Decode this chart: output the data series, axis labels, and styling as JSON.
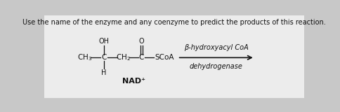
{
  "background_color": "#c8c8c8",
  "content_color": "#f0f0f0",
  "title_text": "Use the name of the enzyme and any coenzyme to predict the products of this reaction.",
  "title_fontsize": 7.0,
  "title_color": "#111111",
  "molecule_color": "#111111",
  "arrow_color": "#111111",
  "enzyme_text_top": "β-hydroxyacyl CoA",
  "enzyme_text_bot": "dehydrogenase",
  "coenzyme_text": "NAD⁺",
  "font_size_mol": 7.5,
  "font_size_enzyme": 7.0
}
